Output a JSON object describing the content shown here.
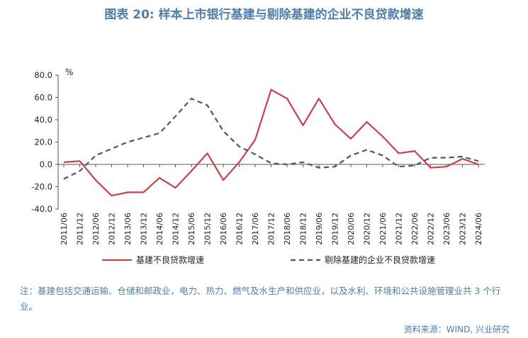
{
  "title": "图表 20: 样本上市银行基建与剔除基建的企业不良贷款增速",
  "note": "注：基建包括交通运输、仓储和邮政业，电力、热力、燃气及水生产和供应业，以及水利、环境和公共设施管理业共 3 个行业。",
  "source": "资料来源：WIND, 兴业研究",
  "colors": {
    "series1": "#c8404a",
    "series2": "#3f5a78",
    "text_accent": "#4f7ea8"
  },
  "chart_data": {
    "type": "line",
    "unit_label": "%",
    "x": [
      "2011/06",
      "2011/12",
      "2012/06",
      "2012/12",
      "2013/06",
      "2013/12",
      "2014/06",
      "2014/12",
      "2015/06",
      "2015/12",
      "2016/06",
      "2016/12",
      "2017/06",
      "2017/12",
      "2018/06",
      "2018/12",
      "2019/06",
      "2019/12",
      "2020/06",
      "2020/12",
      "2021/06",
      "2021/12",
      "2022/06",
      "2022/12",
      "2023/06",
      "2023/12",
      "2024/06"
    ],
    "ylim": [
      -40,
      80
    ],
    "yticks": [
      "80.0",
      "60.0",
      "40.0",
      "20.0",
      "0.0",
      "-20.0",
      "-40.0"
    ],
    "ytick_values": [
      80,
      60,
      40,
      20,
      0,
      -20,
      -40
    ],
    "grid": false,
    "legend_position": "bottom",
    "series": [
      {
        "name": "基建不良贷款增速",
        "style": "solid",
        "values": [
          2,
          3,
          -14,
          -28,
          -25,
          -25,
          -12,
          -21,
          -6,
          10,
          -14,
          2,
          22,
          67,
          59,
          35,
          59,
          36,
          23,
          38,
          25,
          10,
          12,
          -3,
          -2,
          5,
          0
        ]
      },
      {
        "name": "剔除基建的企业不良贷款增速",
        "style": "dashed",
        "values": [
          -13,
          -6,
          8,
          14,
          20,
          24,
          28,
          43,
          59,
          53,
          30,
          16,
          9,
          1,
          0,
          2,
          -3,
          -2,
          8,
          13,
          8,
          -2,
          -1,
          6,
          6,
          7,
          3
        ]
      }
    ]
  }
}
